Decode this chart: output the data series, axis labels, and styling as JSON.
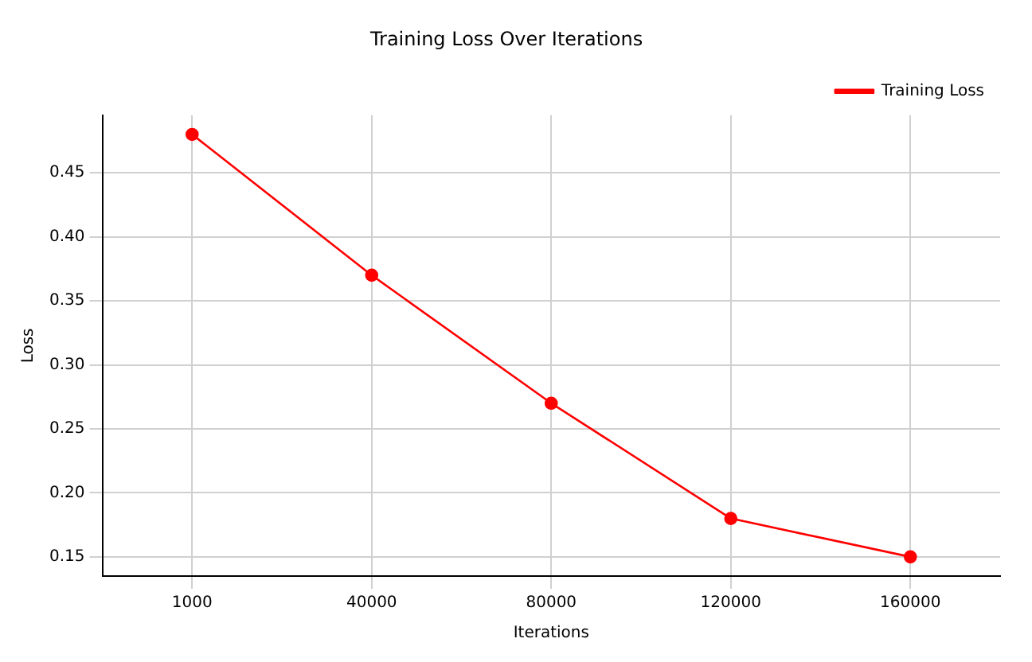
{
  "chart_data": {
    "type": "line",
    "title": "Training Loss Over Iterations",
    "xlabel": "Iterations",
    "ylabel": "Loss",
    "categories": [
      "1000",
      "40000",
      "80000",
      "120000",
      "160000"
    ],
    "series": [
      {
        "name": "Training Loss",
        "color": "#ff0000",
        "values": [
          0.48,
          0.37,
          0.27,
          0.18,
          0.15
        ]
      }
    ],
    "ylim": [
      0.135,
      0.495
    ],
    "yticks": [
      0.15,
      {
        "value": 0.2,
        "label": "0.20"
      },
      0.25,
      {
        "value": 0.3,
        "label": "0.30"
      },
      0.35,
      {
        "value": 0.4,
        "label": "0.40"
      },
      0.45
    ],
    "grid": true,
    "legend": "top right",
    "marker": "circle",
    "line_style": "solid"
  }
}
